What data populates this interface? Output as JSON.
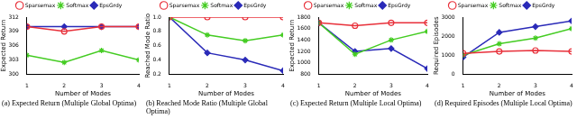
{
  "chart_data": [
    {
      "type": "line",
      "title": "(a) Expected Return (Multiple Global Optima)",
      "x_label": "Number of Modes",
      "y_label": "Expected Return",
      "x": [
        1,
        2,
        3,
        4
      ],
      "xlim": [
        1,
        4
      ],
      "xticks": [
        1,
        2,
        3,
        4
      ],
      "ylim": [
        300,
        312
      ],
      "yticks": [
        300,
        303,
        306,
        309,
        312
      ],
      "grid": false,
      "legend": "top",
      "series": [
        {
          "name": "Sparsemax",
          "color": "#e8303a",
          "marker": "circle",
          "values": [
            310,
            309,
            310,
            310
          ]
        },
        {
          "name": "Softmax",
          "color": "#44cc22",
          "marker": "star",
          "values": [
            304,
            302.5,
            305,
            303
          ]
        },
        {
          "name": "EpsGrdy",
          "color": "#2a2ab8",
          "marker": "diamond",
          "values": [
            310,
            310,
            310,
            310
          ]
        }
      ]
    },
    {
      "type": "line",
      "title": "(b) Reached Mode Ratio (Multiple Global Optima)",
      "x_label": "Number of Modes",
      "y_label": "Reached Mode Ratio",
      "x": [
        1,
        2,
        3,
        4
      ],
      "xlim": [
        1,
        4
      ],
      "xticks": [
        1,
        2,
        3,
        4
      ],
      "ylim": [
        0.2,
        1
      ],
      "yticks": [
        0.2,
        0.4,
        0.6,
        0.8,
        {
          "value": 1,
          "label": "1.0"
        }
      ],
      "grid": false,
      "legend": "top",
      "series": [
        {
          "name": "Sparsemax",
          "color": "#e8303a",
          "marker": "circle",
          "values": [
            1,
            1,
            1,
            1
          ]
        },
        {
          "name": "Softmax",
          "color": "#44cc22",
          "marker": "star",
          "values": [
            1,
            0.75,
            0.67,
            0.75
          ]
        },
        {
          "name": "EpsGrdy",
          "color": "#2a2ab8",
          "marker": "diamond",
          "values": [
            1,
            0.5,
            0.4,
            0.25
          ]
        }
      ]
    },
    {
      "type": "line",
      "title": "(c) Expected Return (Multiple Local Optima)",
      "x_label": "Number of Modes",
      "y_label": "Expected Return",
      "x": [
        1,
        2,
        3,
        4
      ],
      "xlim": [
        1,
        4
      ],
      "xticks": [
        1,
        2,
        3,
        4
      ],
      "ylim": [
        800,
        1800
      ],
      "yticks": [
        800,
        1000,
        1200,
        1400,
        1600,
        1800
      ],
      "grid": false,
      "legend": "top",
      "series": [
        {
          "name": "Sparsemax",
          "color": "#e8303a",
          "marker": "circle",
          "values": [
            1700,
            1650,
            1700,
            1700
          ]
        },
        {
          "name": "Softmax",
          "color": "#44cc22",
          "marker": "star",
          "values": [
            1700,
            1150,
            1400,
            1550
          ]
        },
        {
          "name": "EpsGrdy",
          "color": "#2a2ab8",
          "marker": "diamond",
          "values": [
            1700,
            1200,
            1250,
            900
          ]
        }
      ]
    },
    {
      "type": "line",
      "title": "(d) Required Episodes (Multiple Local Optima)",
      "x_label": "Number of Modes",
      "y_label": "Required Episodes",
      "x": [
        1,
        2,
        3,
        4
      ],
      "xlim": [
        1,
        4
      ],
      "xticks": [
        1,
        2,
        3,
        4
      ],
      "ylim": [
        0,
        3000
      ],
      "yticks": [
        0,
        1000,
        2000,
        3000
      ],
      "grid": false,
      "legend": "top",
      "series": [
        {
          "name": "Sparsemax",
          "color": "#e8303a",
          "marker": "circle",
          "values": [
            1100,
            1200,
            1250,
            1200
          ]
        },
        {
          "name": "Softmax",
          "color": "#44cc22",
          "marker": "star",
          "values": [
            1000,
            1600,
            1900,
            2400
          ]
        },
        {
          "name": "EpsGrdy",
          "color": "#2a2ab8",
          "marker": "diamond",
          "values": [
            900,
            2200,
            2500,
            2800
          ]
        }
      ]
    }
  ]
}
